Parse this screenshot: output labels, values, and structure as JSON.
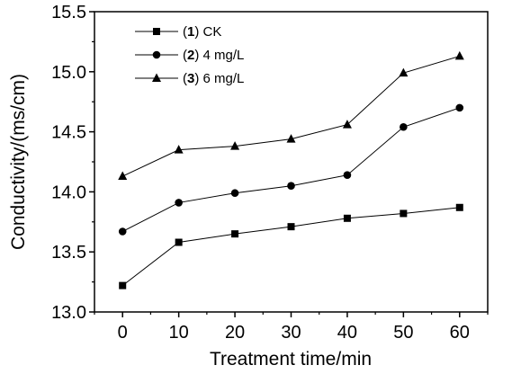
{
  "chart_data": {
    "type": "line",
    "xlabel": "Treatment time/min",
    "ylabel": "Conductivity/(ms/cm)",
    "x": [
      0,
      10,
      20,
      30,
      40,
      50,
      60
    ],
    "xlim": [
      -5,
      65
    ],
    "ylim": [
      13.0,
      15.5
    ],
    "x_ticks": [
      "0",
      "10",
      "20",
      "30",
      "40",
      "50",
      "60"
    ],
    "y_ticks": [
      "13.0",
      "13.5",
      "14.0",
      "14.5",
      "15.0",
      "15.5"
    ],
    "grid": false,
    "legend_position": "top-left",
    "series": [
      {
        "name": "CK",
        "legend_number": "1",
        "marker": "square",
        "values": [
          13.22,
          13.58,
          13.65,
          13.71,
          13.78,
          13.82,
          13.87
        ]
      },
      {
        "name": "4 mg/L",
        "legend_number": "2",
        "marker": "circle",
        "values": [
          13.67,
          13.91,
          13.99,
          14.05,
          14.14,
          14.54,
          14.7
        ]
      },
      {
        "name": "6 mg/L",
        "legend_number": "3",
        "marker": "triangle",
        "values": [
          14.13,
          14.35,
          14.38,
          14.44,
          14.56,
          14.99,
          15.13
        ]
      }
    ],
    "colors": {
      "line": "#000000",
      "marker": "#000000",
      "axis": "#000000"
    }
  }
}
